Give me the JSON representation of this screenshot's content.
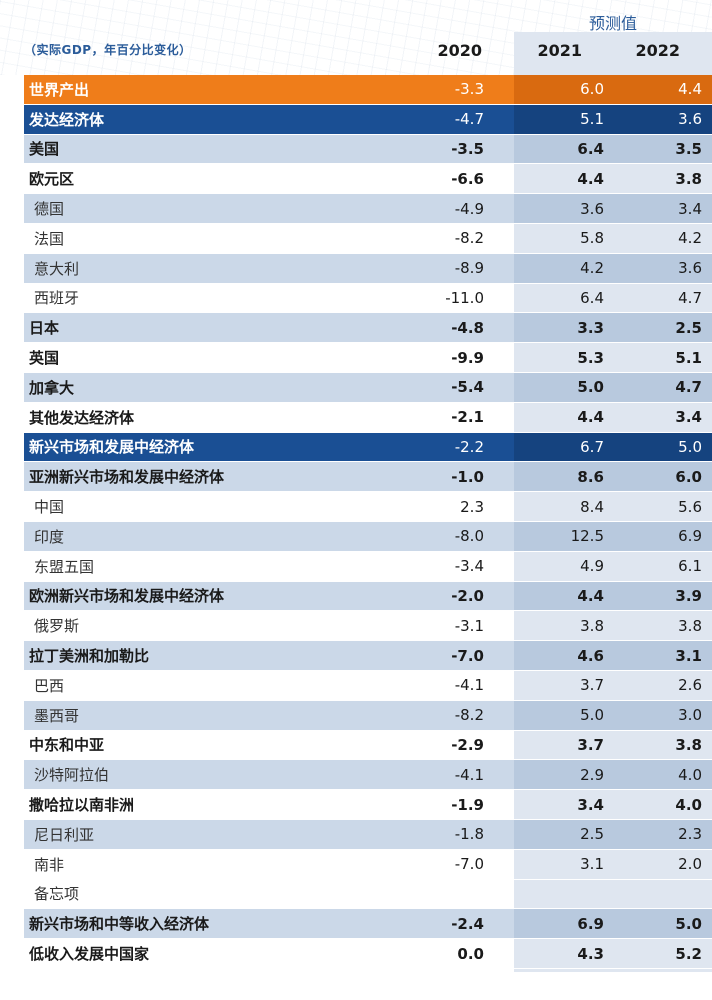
{
  "header": {
    "forecast_label": "预测值",
    "unit_label": "（实际GDP，年百分比变化）",
    "years": [
      "2020",
      "2021",
      "2022"
    ]
  },
  "rows": [
    {
      "name": "世界产出",
      "v2020": "-3.3",
      "v2021": "6.0",
      "v2022": "4.4",
      "style": "orange"
    },
    {
      "name": "发达经济体",
      "v2020": "-4.7",
      "v2021": "5.1",
      "v2022": "3.6",
      "style": "navy"
    },
    {
      "name": "美国",
      "v2020": "-3.5",
      "v2021": "6.4",
      "v2022": "3.5",
      "style": "shade bold"
    },
    {
      "name": "欧元区",
      "v2020": "-6.6",
      "v2021": "4.4",
      "v2022": "3.8",
      "style": "white bold"
    },
    {
      "name": "德国",
      "v2020": "-4.9",
      "v2021": "3.6",
      "v2022": "3.4",
      "style": "shade sub"
    },
    {
      "name": "法国",
      "v2020": "-8.2",
      "v2021": "5.8",
      "v2022": "4.2",
      "style": "white sub"
    },
    {
      "name": "意大利",
      "v2020": "-8.9",
      "v2021": "4.2",
      "v2022": "3.6",
      "style": "shade sub"
    },
    {
      "name": "西班牙",
      "v2020": "-11.0",
      "v2021": "6.4",
      "v2022": "4.7",
      "style": "white sub"
    },
    {
      "name": "日本",
      "v2020": "-4.8",
      "v2021": "3.3",
      "v2022": "2.5",
      "style": "shade bold"
    },
    {
      "name": "英国",
      "v2020": "-9.9",
      "v2021": "5.3",
      "v2022": "5.1",
      "style": "white bold"
    },
    {
      "name": "加拿大",
      "v2020": "-5.4",
      "v2021": "5.0",
      "v2022": "4.7",
      "style": "shade bold"
    },
    {
      "name": "其他发达经济体",
      "v2020": "-2.1",
      "v2021": "4.4",
      "v2022": "3.4",
      "style": "white bold"
    },
    {
      "name": "新兴市场和发展中经济体",
      "v2020": "-2.2",
      "v2021": "6.7",
      "v2022": "5.0",
      "style": "navy"
    },
    {
      "name": "亚洲新兴市场和发展中经济体",
      "v2020": "-1.0",
      "v2021": "8.6",
      "v2022": "6.0",
      "style": "shade bold"
    },
    {
      "name": "中国",
      "v2020": "2.3",
      "v2021": "8.4",
      "v2022": "5.6",
      "style": "white sub"
    },
    {
      "name": "印度",
      "v2020": "-8.0",
      "v2021": "12.5",
      "v2022": "6.9",
      "style": "shade sub"
    },
    {
      "name": "东盟五国",
      "v2020": "-3.4",
      "v2021": "4.9",
      "v2022": "6.1",
      "style": "white sub"
    },
    {
      "name": "欧洲新兴市场和发展中经济体",
      "v2020": "-2.0",
      "v2021": "4.4",
      "v2022": "3.9",
      "style": "shade bold"
    },
    {
      "name": "俄罗斯",
      "v2020": "-3.1",
      "v2021": "3.8",
      "v2022": "3.8",
      "style": "white sub"
    },
    {
      "name": "拉丁美洲和加勒比",
      "v2020": "-7.0",
      "v2021": "4.6",
      "v2022": "3.1",
      "style": "shade bold"
    },
    {
      "name": "巴西",
      "v2020": "-4.1",
      "v2021": "3.7",
      "v2022": "2.6",
      "style": "white sub"
    },
    {
      "name": "墨西哥",
      "v2020": "-8.2",
      "v2021": "5.0",
      "v2022": "3.0",
      "style": "shade sub"
    },
    {
      "name": "中东和中亚",
      "v2020": "-2.9",
      "v2021": "3.7",
      "v2022": "3.8",
      "style": "white bold"
    },
    {
      "name": "沙特阿拉伯",
      "v2020": "-4.1",
      "v2021": "2.9",
      "v2022": "4.0",
      "style": "shade sub"
    },
    {
      "name": "撒哈拉以南非洲",
      "v2020": "-1.9",
      "v2021": "3.4",
      "v2022": "4.0",
      "style": "white bold"
    },
    {
      "name": "尼日利亚",
      "v2020": "-1.8",
      "v2021": "2.5",
      "v2022": "2.3",
      "style": "shade sub"
    },
    {
      "name": "南非",
      "v2020": "-7.0",
      "v2021": "3.1",
      "v2022": "2.0",
      "style": "white sub"
    },
    {
      "name": "备忘项",
      "v2020": "",
      "v2021": "",
      "v2022": "",
      "style": "memo sub"
    },
    {
      "name": "新兴市场和中等收入经济体",
      "v2020": "-2.4",
      "v2021": "6.9",
      "v2022": "5.0",
      "style": "shade bold"
    },
    {
      "name": "低收入发展中国家",
      "v2020": "0.0",
      "v2021": "4.3",
      "v2022": "5.2",
      "style": "white bold"
    }
  ]
}
